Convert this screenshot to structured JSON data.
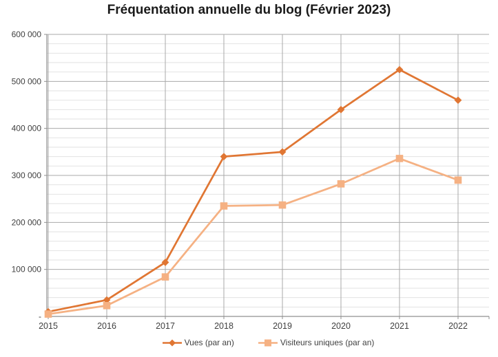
{
  "chart_data": {
    "type": "line",
    "title": "Fréquentation annuelle du blog (Février 2023)",
    "categories": [
      "2015",
      "2016",
      "2017",
      "2018",
      "2019",
      "2020",
      "2021",
      "2022"
    ],
    "series": [
      {
        "name": "Vues (par an)",
        "marker": "diamond",
        "color": "#E07633",
        "values": [
          10000,
          35000,
          115000,
          340000,
          350000,
          440000,
          525000,
          460000
        ]
      },
      {
        "name": "Visiteurs uniques (par an)",
        "marker": "square",
        "color": "#F5B183",
        "values": [
          5000,
          23000,
          84000,
          235000,
          237000,
          282000,
          336000,
          290000
        ]
      }
    ],
    "y_axis": {
      "min": 0,
      "max": 600000,
      "major_step": 100000,
      "minor_step": 20000,
      "tick_labels": [
        "600 000",
        "500 000",
        "400 000",
        "300 000",
        "200 000",
        "100 000",
        "-"
      ]
    },
    "x_axis": {
      "tick_labels": [
        "2015",
        "2016",
        "2017",
        "2018",
        "2019",
        "2020",
        "2021",
        "2022"
      ]
    },
    "grid": {
      "horizontal_major": true,
      "horizontal_minor": true,
      "vertical": true
    },
    "legend_position": "bottom"
  },
  "palette": {
    "major_grid": "#A9A9A9",
    "minor_grid": "#E2E2E2",
    "axis": "#8F8F8F",
    "tick_text": "#3F3F3F",
    "title_text": "#1A1A1A"
  }
}
